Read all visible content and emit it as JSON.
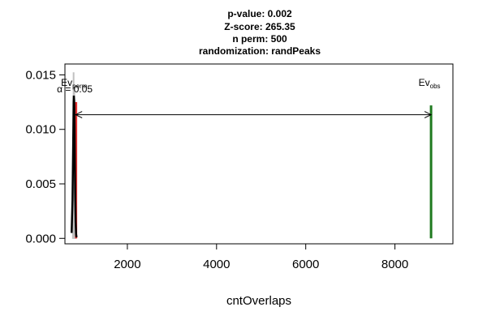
{
  "chart_data": {
    "type": "line",
    "title_lines": [
      "p-value:  0.002",
      "Z-score:  265.35",
      "n perm:  500",
      "randomization:  randPeaks"
    ],
    "xlabel": "cntOverlaps",
    "ylabel": "",
    "xlim": [
      600,
      9300
    ],
    "ylim": [
      -0.0005,
      0.016
    ],
    "xticks": [
      2000,
      4000,
      6000,
      8000
    ],
    "xtick_labels": [
      "2000",
      "4000",
      "6000",
      "8000"
    ],
    "yticks": [
      0.0,
      0.005,
      0.01,
      0.015
    ],
    "ytick_labels": [
      "0.000",
      "0.005",
      "0.010",
      "0.015"
    ],
    "grid": false,
    "series": [
      {
        "role": "permuted-density",
        "color": "#000000",
        "x": [
          750,
          770,
          785,
          795,
          800,
          808,
          815,
          822,
          830,
          840,
          850,
          860
        ],
        "y": [
          0.0005,
          0.0035,
          0.0085,
          0.0125,
          0.0131,
          0.0126,
          0.0105,
          0.0072,
          0.004,
          0.0015,
          0.0004,
          0.0001
        ]
      },
      {
        "role": "permuted-histogram",
        "color": "#c0c0c0",
        "bins": [
          {
            "x0": 770,
            "x1": 785,
            "y": 0.003
          },
          {
            "x0": 785,
            "x1": 800,
            "y": 0.0152
          },
          {
            "x0": 800,
            "x1": 815,
            "y": 0.0137
          },
          {
            "x0": 815,
            "x1": 830,
            "y": 0.008
          },
          {
            "x0": 830,
            "x1": 845,
            "y": 0.0022
          }
        ]
      },
      {
        "role": "red-permuted-lines",
        "color": "#e03030",
        "x_values": [
          840,
          850,
          855,
          862
        ],
        "top_y": 0.0125
      }
    ],
    "annotations": {
      "alpha": {
        "text": "α = 0.05",
        "x": 820,
        "y": 0.0137
      },
      "ev_perm": {
        "main": "Ev",
        "sub": "perm",
        "x": 805,
        "y": 0.014
      },
      "ev_obs": {
        "main": "Ev",
        "sub": "obs",
        "x": 8810,
        "y": 0.014
      },
      "observed_line": {
        "x": 8810,
        "y_top": 0.0122,
        "color": "#1f7a1f"
      },
      "arrow": {
        "x_from": 840,
        "x_to": 8810,
        "y": 0.01135
      }
    }
  }
}
